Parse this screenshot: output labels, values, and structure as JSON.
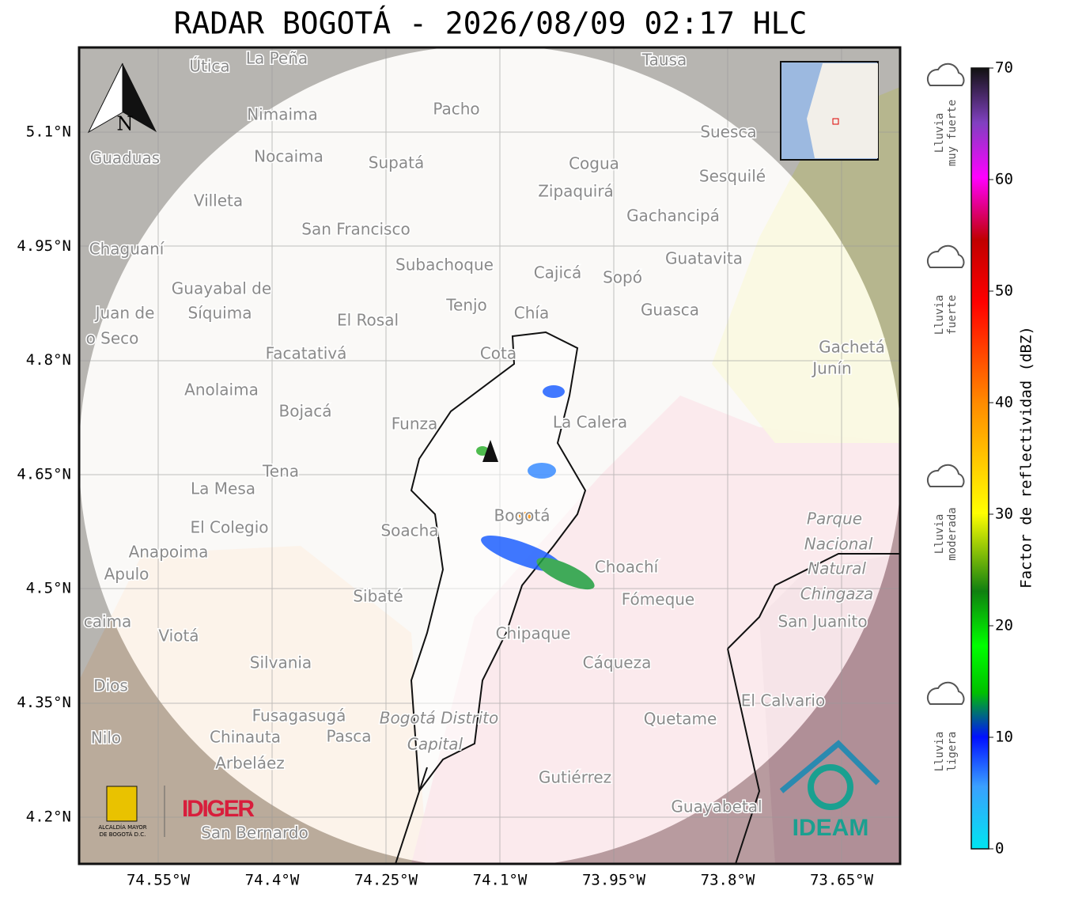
{
  "title": "RADAR BOGOTÁ - 2026/08/09 02:17 HLC",
  "lon_ticks": [
    "74.55°W",
    "74.4°W",
    "74.25°W",
    "74.1°W",
    "73.95°W",
    "73.8°W",
    "73.65°W"
  ],
  "lat_ticks": [
    "5.1°N",
    "4.95°N",
    "4.8°N",
    "4.65°N",
    "4.5°N",
    "4.35°N",
    "4.2°N"
  ],
  "north": "N",
  "places": [
    "La Peña",
    "Útica",
    "Tausa",
    "Pacho",
    "Nimaima",
    "Guaduas",
    "Nocaima",
    "Supatá",
    "Cogua",
    "Suesca",
    "Sesquilé",
    "Villeta",
    "Zipaquirá",
    "Gachancipá",
    "San Francisco",
    "Chaguaní",
    "Subachoque",
    "Guatavita",
    "Cajicá",
    "Sopó",
    "Guayabal de",
    "Síquima",
    "Tenjo",
    "Chía",
    "Guasca",
    "El Rosal",
    "Facatativá",
    "Cota",
    "Gachetá",
    "Junín",
    "Anolaima",
    "Bojacá",
    "Funza",
    "La Calera",
    "Tena",
    "La Mesa",
    "Soacha",
    "Bogotá",
    "El Colegio",
    "Parque",
    "Nacional",
    "Natural",
    "Chingaza",
    "Anapoima",
    "Apulo",
    "Choachí",
    "Sibaté",
    "Fómeque",
    "San Juanito",
    "Viotá",
    "Chipaque",
    "Silvania",
    "Cáqueza",
    "El Calvario",
    "Fusagasugá",
    "Bogotá Distrito",
    "Capital",
    "Quetame",
    "Nilo",
    "Chinauta",
    "Pasca",
    "Arbeláez",
    "Gutiérrez",
    "Guayabetal",
    "San Bernardo",
    "Juan de",
    "o Seco",
    "Dios",
    "caima"
  ],
  "logos": {
    "alcaldia": [
      "ALCALDÍA MAYOR",
      "DE BOGOTÁ D.C."
    ],
    "idiger": "IDIGER",
    "ideam": "IDEAM"
  },
  "colorbar": {
    "label": "Factor de reflectividad (dBZ)",
    "range": [
      0,
      70
    ],
    "ticks": [
      0,
      10,
      20,
      30,
      40,
      50,
      60,
      70
    ]
  },
  "intensity": [
    [
      "Lluvia",
      "muy fuerte"
    ],
    [
      "Lluvia",
      "fuerte"
    ],
    [
      "Lluvia",
      "moderada"
    ],
    [
      "Lluvia",
      "ligera"
    ]
  ]
}
